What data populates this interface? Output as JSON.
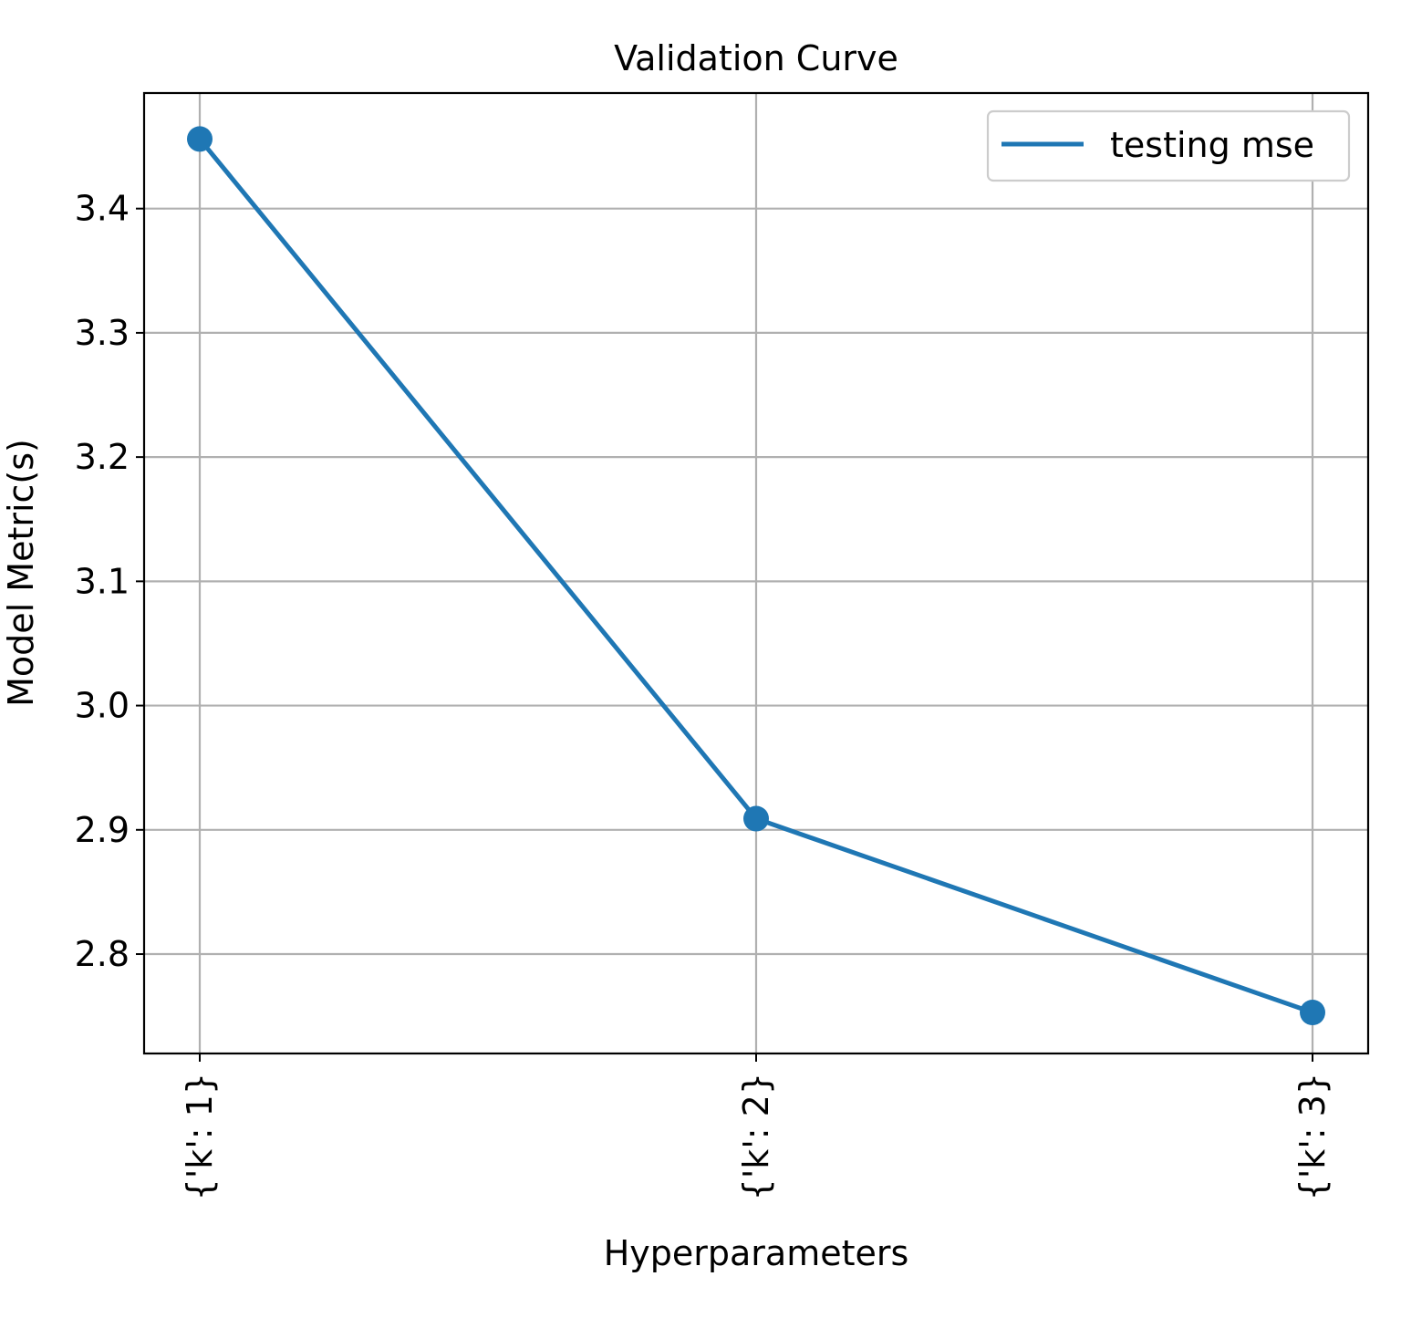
{
  "chart_data": {
    "type": "line",
    "title": "Validation Curve",
    "xlabel": "Hyperparameters",
    "ylabel": "Model Metric(s)",
    "categories": [
      "{'k': 1}",
      "{'k': 2}",
      "{'k': 3}"
    ],
    "series": [
      {
        "name": "testing mse",
        "values": [
          3.456,
          2.909,
          2.753
        ],
        "color": "#1f77b4"
      }
    ],
    "ylim": [
      2.72,
      3.493
    ],
    "yticks": [
      "2.8",
      "2.9",
      "3.0",
      "3.1",
      "3.2",
      "3.3",
      "3.4"
    ],
    "grid": true,
    "legend": "top-right",
    "markers": true
  }
}
